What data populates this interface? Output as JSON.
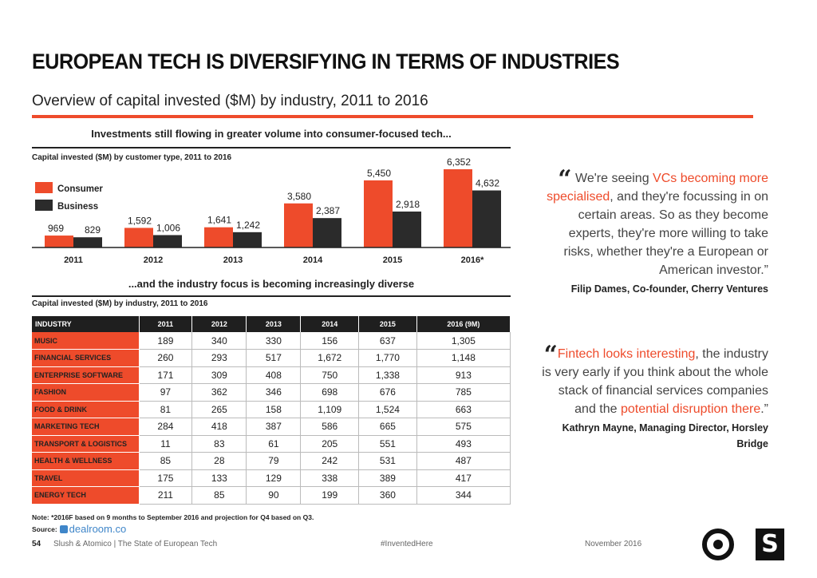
{
  "header": {
    "title": "EUROPEAN TECH IS DIVERSIFYING IN TERMS OF INDUSTRIES",
    "subtitle": "Overview of capital invested ($M) by industry, 2011 to 2016"
  },
  "chart_data": [
    {
      "type": "bar",
      "title": "Investments still flowing in greater volume into consumer-focused tech...",
      "subtitle": "Capital invested ($M) by customer type, 2011 to 2016",
      "categories": [
        "2011",
        "2012",
        "2013",
        "2014",
        "2015",
        "2016*"
      ],
      "series": [
        {
          "name": "Consumer",
          "values": [
            969,
            1592,
            1641,
            3580,
            5450,
            6352
          ]
        },
        {
          "name": "Business",
          "values": [
            829,
            1006,
            1242,
            2387,
            2918,
            4632
          ]
        }
      ],
      "value_labels": {
        "Consumer": [
          "969",
          "1,592",
          "1,641",
          "3,580",
          "5,450",
          "6,352"
        ],
        "Business": [
          "829",
          "1,006",
          "1,242",
          "2,387",
          "2,918",
          "4,632"
        ]
      },
      "legend": "top-left",
      "grid": false,
      "colors": {
        "Consumer": "#ee4b2b",
        "Business": "#2b2b2b"
      },
      "ylim": [
        0,
        6352
      ]
    },
    {
      "type": "table",
      "title": "...and the industry focus is becoming increasingly diverse",
      "subtitle": "Capital invested ($M) by industry, 2011 to 2016",
      "columns": [
        "INDUSTRY",
        "2011",
        "2012",
        "2013",
        "2014",
        "2015",
        "2016 (9M)"
      ],
      "rows": [
        [
          "MUSIC",
          "189",
          "340",
          "330",
          "156",
          "637",
          "1,305"
        ],
        [
          "FINANCIAL SERVICES",
          "260",
          "293",
          "517",
          "1,672",
          "1,770",
          "1,148"
        ],
        [
          "ENTERPRISE SOFTWARE",
          "171",
          "309",
          "408",
          "750",
          "1,338",
          "913"
        ],
        [
          "FASHION",
          "97",
          "362",
          "346",
          "698",
          "676",
          "785"
        ],
        [
          "FOOD & DRINK",
          "81",
          "265",
          "158",
          "1,109",
          "1,524",
          "663"
        ],
        [
          "MARKETING TECH",
          "284",
          "418",
          "387",
          "586",
          "665",
          "575"
        ],
        [
          "TRANSPORT & LOGISTICS",
          "11",
          "83",
          "61",
          "205",
          "551",
          "493"
        ],
        [
          "HEALTH & WELLNESS",
          "85",
          "28",
          "79",
          "242",
          "531",
          "487"
        ],
        [
          "TRAVEL",
          "175",
          "133",
          "129",
          "338",
          "389",
          "417"
        ],
        [
          "ENERGY TECH",
          "211",
          "85",
          "90",
          "199",
          "360",
          "344"
        ]
      ]
    }
  ],
  "notes": {
    "note": "Note: *2016F based on 9 months to September 2016 and projection for Q4 based on Q3.",
    "source_label": "Source:",
    "source_name": "dealroom.co"
  },
  "quotes": [
    {
      "parts": [
        {
          "text": "We're seeing ",
          "hl": false
        },
        {
          "text": "VCs becoming more specialised",
          "hl": true
        },
        {
          "text": ", and they're focussing in on certain areas. So as they become experts, they're more willing to take risks, whether they're a European or American investor.”",
          "hl": false
        }
      ],
      "attribution": "Filip Dames, Co-founder, Cherry Ventures"
    },
    {
      "parts": [
        {
          "text": "Fintech looks interesting",
          "hl": true
        },
        {
          "text": ", the industry is very early if you think about the whole stack of financial services companies and the ",
          "hl": false
        },
        {
          "text": "potential disruption there",
          "hl": true
        },
        {
          "text": ".”",
          "hl": false
        }
      ],
      "attribution": "Kathryn Mayne, Managing Director, Horsley Bridge"
    }
  ],
  "footer": {
    "page": "54",
    "publication": "Slush & Atomico  |  The State of European Tech",
    "hashtag": "#InventedHere",
    "date": "November 2016",
    "slush_glyph": "S"
  },
  "colors": {
    "accent": "#ee4b2b",
    "dark": "#1f1f1f"
  }
}
